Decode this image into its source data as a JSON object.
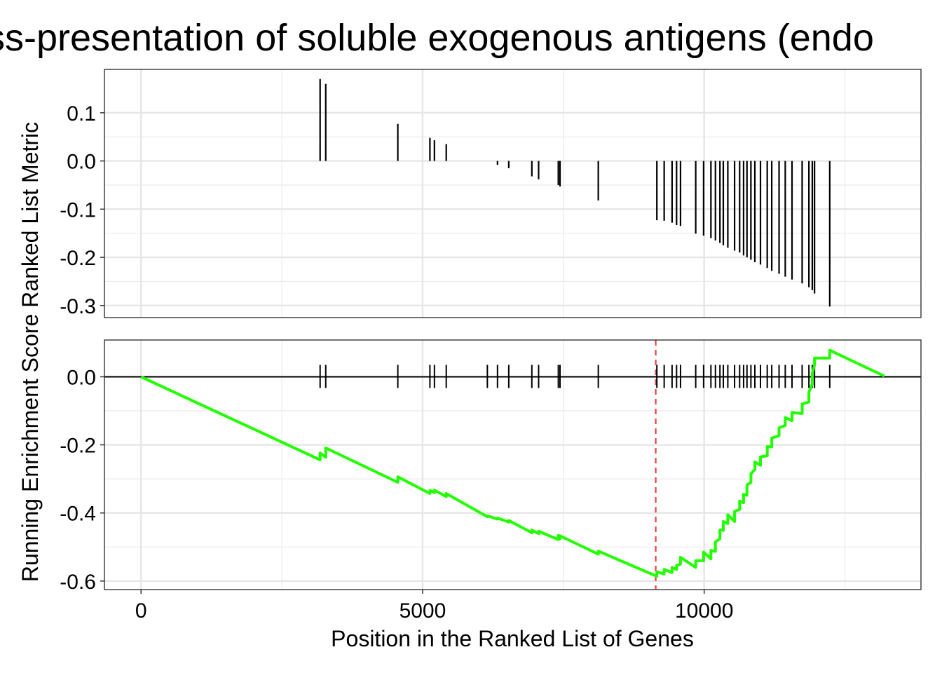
{
  "chart_data": {
    "type": "line",
    "title": "ss-presentation of soluble exogenous antigens (endo",
    "xlabel": "Position in the Ranked List of Genes",
    "ylabel": "Running Enrichment Score Ranked List Metric",
    "xlim": [
      -650,
      13850
    ],
    "x_ticks": [
      0,
      5000,
      10000
    ],
    "x_tick_labels": [
      "0",
      "5000",
      "10000"
    ],
    "grid": true,
    "panels": [
      {
        "name": "ranked_list_metric",
        "type": "bar",
        "ylim": [
          -0.325,
          0.19
        ],
        "y_ticks": [
          0.1,
          0.0,
          -0.1,
          -0.2,
          -0.3
        ],
        "y_tick_labels": [
          "0.1",
          "0.0",
          "-0.1",
          "-0.2",
          "-0.3"
        ],
        "x": [
          3180,
          3280,
          4560,
          5130,
          5210,
          5420,
          6150,
          6330,
          6530,
          6940,
          7060,
          7410,
          7440,
          8120,
          9160,
          9290,
          9430,
          9510,
          9580,
          9850,
          9990,
          10120,
          10200,
          10280,
          10340,
          10420,
          10540,
          10630,
          10700,
          10760,
          10830,
          10900,
          11000,
          11120,
          11200,
          11330,
          11440,
          11560,
          11740,
          11860,
          11920,
          11960,
          12230
        ],
        "values": [
          0.17,
          0.16,
          0.077,
          0.048,
          0.043,
          0.035,
          0.0,
          -0.008,
          -0.015,
          -0.032,
          -0.038,
          -0.05,
          -0.053,
          -0.082,
          -0.123,
          -0.124,
          -0.128,
          -0.133,
          -0.135,
          -0.151,
          -0.155,
          -0.16,
          -0.165,
          -0.17,
          -0.175,
          -0.18,
          -0.186,
          -0.19,
          -0.196,
          -0.2,
          -0.205,
          -0.21,
          -0.215,
          -0.222,
          -0.228,
          -0.234,
          -0.24,
          -0.246,
          -0.254,
          -0.262,
          -0.268,
          -0.275,
          -0.302
        ],
        "color": "#000000"
      },
      {
        "name": "running_enrichment_score",
        "type": "line",
        "ylim": [
          -0.625,
          0.108
        ],
        "y_ticks": [
          0.0,
          -0.2,
          -0.4,
          -0.6
        ],
        "y_tick_labels": [
          "0.0",
          "-0.2",
          "-0.4",
          "-0.6"
        ],
        "line_color": "#22ff00",
        "hit_tick_color": "#000000",
        "zero_line": true,
        "max_deviation_x": 9140,
        "max_deviation_color": "#e8404a",
        "x_end": 13200,
        "x_hits": [
          3180,
          3280,
          4560,
          5130,
          5210,
          5420,
          6150,
          6330,
          6530,
          6940,
          7060,
          7410,
          7440,
          8120,
          9160,
          9290,
          9430,
          9510,
          9580,
          9850,
          9990,
          10120,
          10200,
          10280,
          10340,
          10420,
          10540,
          10630,
          10700,
          10760,
          10830,
          10900,
          11000,
          11120,
          11200,
          11330,
          11440,
          11560,
          11740,
          11860,
          11920,
          11960,
          12230
        ],
        "es_start": 0.0,
        "es_before_hits": [
          -0.244,
          -0.236,
          -0.31,
          -0.343,
          -0.34,
          -0.352,
          -0.411,
          -0.418,
          -0.427,
          -0.458,
          -0.461,
          -0.478,
          -0.476,
          -0.521,
          -0.586,
          -0.579,
          -0.575,
          -0.566,
          -0.55,
          -0.56,
          -0.54,
          -0.535,
          -0.513,
          -0.476,
          -0.451,
          -0.431,
          -0.425,
          -0.39,
          -0.37,
          -0.348,
          -0.31,
          -0.272,
          -0.26,
          -0.232,
          -0.206,
          -0.173,
          -0.143,
          -0.129,
          -0.108,
          -0.074,
          -0.021,
          0.034,
          0.055
        ],
        "es_after_hits": [
          -0.224,
          -0.209,
          -0.294,
          -0.334,
          -0.333,
          -0.343,
          -0.408,
          -0.415,
          -0.422,
          -0.45,
          -0.454,
          -0.466,
          -0.467,
          -0.512,
          -0.573,
          -0.566,
          -0.56,
          -0.554,
          -0.53,
          -0.54,
          -0.515,
          -0.51,
          -0.485,
          -0.45,
          -0.425,
          -0.405,
          -0.395,
          -0.365,
          -0.345,
          -0.318,
          -0.285,
          -0.25,
          -0.235,
          -0.205,
          -0.18,
          -0.15,
          -0.12,
          -0.105,
          -0.08,
          -0.045,
          0.01,
          0.055,
          0.078
        ],
        "es_end": 0.002
      }
    ]
  }
}
